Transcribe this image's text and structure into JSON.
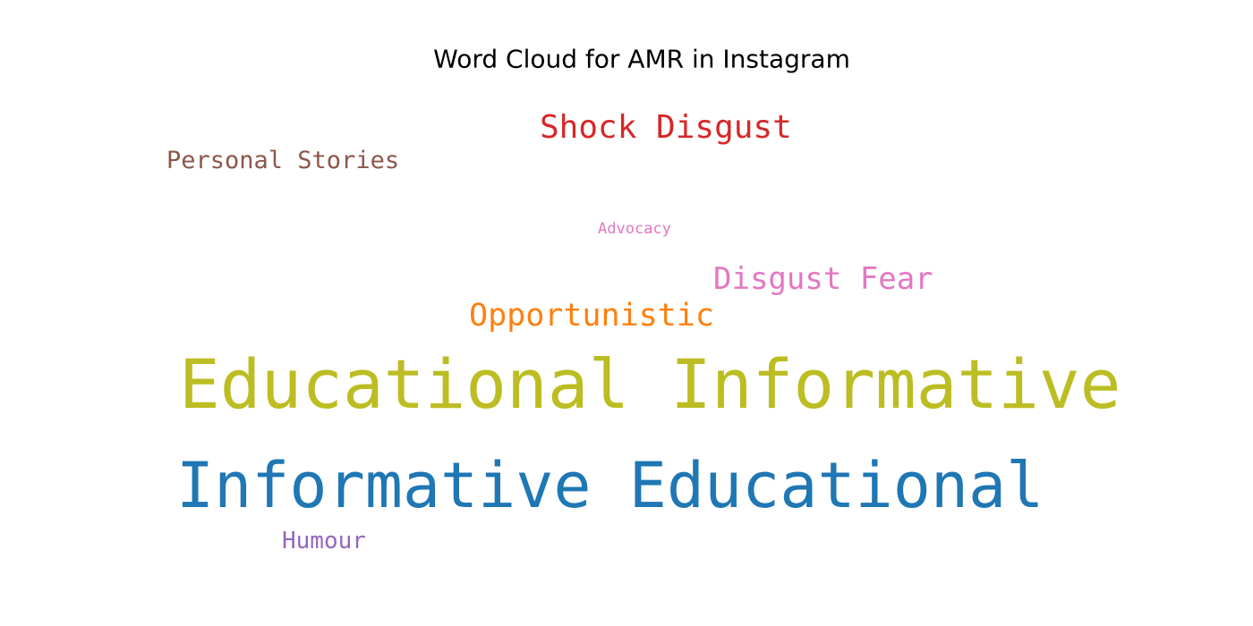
{
  "chart_data": {
    "type": "wordcloud",
    "title": "Word Cloud for AMR in Instagram",
    "words": [
      {
        "text": "Educational Informative",
        "weight": 1.0,
        "color": "#bcbd22"
      },
      {
        "text": "Informative Educational",
        "weight": 0.92,
        "color": "#1f77b4"
      },
      {
        "text": "Shock Disgust",
        "weight": 0.45,
        "color": "#d62728"
      },
      {
        "text": "Opportunistic",
        "weight": 0.43,
        "color": "#ff7f0e"
      },
      {
        "text": "Disgust Fear",
        "weight": 0.42,
        "color": "#e377c2"
      },
      {
        "text": "Personal Stories",
        "weight": 0.35,
        "color": "#8c564b"
      },
      {
        "text": "Humour",
        "weight": 0.34,
        "color": "#9467bd"
      },
      {
        "text": "Advocacy",
        "weight": 0.24,
        "color": "#e377c2"
      }
    ]
  }
}
